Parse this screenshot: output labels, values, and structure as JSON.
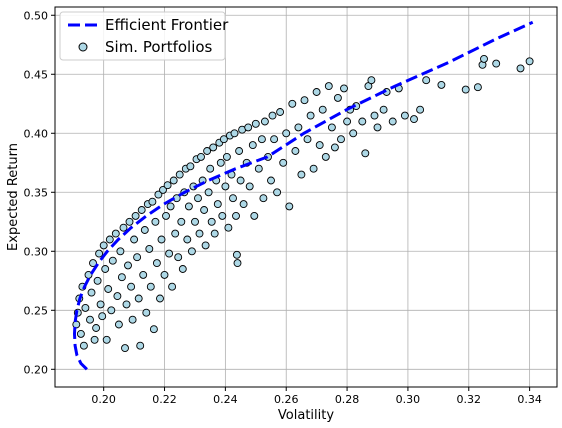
{
  "chart_data": {
    "type": "scatter",
    "xlabel": "Volatility",
    "ylabel": "Expected Return",
    "xlim": [
      0.184,
      0.349
    ],
    "ylim": [
      0.185,
      0.507
    ],
    "xticks": [
      0.2,
      0.22,
      0.24,
      0.26,
      0.28,
      0.3,
      0.32,
      0.34
    ],
    "xtick_labels": [
      "0.20",
      "0.22",
      "0.24",
      "0.26",
      "0.28",
      "0.30",
      "0.32",
      "0.34"
    ],
    "yticks": [
      0.2,
      0.25,
      0.3,
      0.35,
      0.4,
      0.45,
      0.5
    ],
    "ytick_labels": [
      "0.20",
      "0.25",
      "0.30",
      "0.35",
      "0.40",
      "0.45",
      "0.50"
    ],
    "grid": true,
    "legend_position": "upper-left",
    "series": [
      {
        "name": "Efficient Frontier",
        "kind": "line",
        "style": "dashed",
        "color": "#0000ff",
        "x": [
          0.1945,
          0.1925,
          0.1912,
          0.1906,
          0.1904,
          0.1906,
          0.1912,
          0.1922,
          0.1937,
          0.1957,
          0.1982,
          0.2012,
          0.2048,
          0.209,
          0.214,
          0.2198,
          0.2266,
          0.2344,
          0.2434,
          0.2538,
          0.2658,
          0.2798,
          0.2958,
          0.3133,
          0.329,
          0.341
        ],
        "y": [
          0.2,
          0.205,
          0.212,
          0.22,
          0.23,
          0.24,
          0.25,
          0.26,
          0.27,
          0.28,
          0.29,
          0.3,
          0.31,
          0.32,
          0.33,
          0.34,
          0.35,
          0.36,
          0.37,
          0.38,
          0.4,
          0.42,
          0.44,
          0.46,
          0.48,
          0.494
        ]
      },
      {
        "name": "Sim. Portfolios",
        "kind": "scatter",
        "marker_face": "#add8e6",
        "marker_edge": "#000000",
        "points": [
          [
            0.191,
            0.238
          ],
          [
            0.1915,
            0.248
          ],
          [
            0.192,
            0.26
          ],
          [
            0.1925,
            0.23
          ],
          [
            0.193,
            0.27
          ],
          [
            0.1935,
            0.22
          ],
          [
            0.194,
            0.252
          ],
          [
            0.195,
            0.28
          ],
          [
            0.1955,
            0.242
          ],
          [
            0.196,
            0.265
          ],
          [
            0.1965,
            0.29
          ],
          [
            0.197,
            0.225
          ],
          [
            0.1975,
            0.235
          ],
          [
            0.198,
            0.275
          ],
          [
            0.1985,
            0.298
          ],
          [
            0.199,
            0.255
          ],
          [
            0.1995,
            0.245
          ],
          [
            0.2,
            0.305
          ],
          [
            0.2005,
            0.285
          ],
          [
            0.201,
            0.225
          ],
          [
            0.2015,
            0.268
          ],
          [
            0.202,
            0.31
          ],
          [
            0.2025,
            0.25
          ],
          [
            0.203,
            0.292
          ],
          [
            0.204,
            0.315
          ],
          [
            0.2045,
            0.262
          ],
          [
            0.205,
            0.238
          ],
          [
            0.2055,
            0.3
          ],
          [
            0.206,
            0.278
          ],
          [
            0.2065,
            0.32
          ],
          [
            0.207,
            0.218
          ],
          [
            0.2075,
            0.255
          ],
          [
            0.208,
            0.288
          ],
          [
            0.2085,
            0.325
          ],
          [
            0.209,
            0.27
          ],
          [
            0.2095,
            0.242
          ],
          [
            0.21,
            0.31
          ],
          [
            0.2105,
            0.33
          ],
          [
            0.211,
            0.295
          ],
          [
            0.2115,
            0.26
          ],
          [
            0.212,
            0.22
          ],
          [
            0.2125,
            0.335
          ],
          [
            0.213,
            0.28
          ],
          [
            0.2135,
            0.318
          ],
          [
            0.214,
            0.248
          ],
          [
            0.2145,
            0.34
          ],
          [
            0.215,
            0.302
          ],
          [
            0.2155,
            0.27
          ],
          [
            0.216,
            0.342
          ],
          [
            0.2165,
            0.234
          ],
          [
            0.217,
            0.325
          ],
          [
            0.2175,
            0.29
          ],
          [
            0.218,
            0.348
          ],
          [
            0.2185,
            0.26
          ],
          [
            0.219,
            0.31
          ],
          [
            0.2195,
            0.352
          ],
          [
            0.22,
            0.28
          ],
          [
            0.2205,
            0.33
          ],
          [
            0.221,
            0.356
          ],
          [
            0.2215,
            0.298
          ],
          [
            0.222,
            0.338
          ],
          [
            0.2225,
            0.27
          ],
          [
            0.223,
            0.36
          ],
          [
            0.2235,
            0.315
          ],
          [
            0.224,
            0.345
          ],
          [
            0.2245,
            0.295
          ],
          [
            0.225,
            0.365
          ],
          [
            0.2255,
            0.325
          ],
          [
            0.226,
            0.285
          ],
          [
            0.2265,
            0.35
          ],
          [
            0.227,
            0.37
          ],
          [
            0.2275,
            0.31
          ],
          [
            0.228,
            0.338
          ],
          [
            0.2285,
            0.372
          ],
          [
            0.229,
            0.3
          ],
          [
            0.2295,
            0.355
          ],
          [
            0.23,
            0.325
          ],
          [
            0.2305,
            0.378
          ],
          [
            0.231,
            0.345
          ],
          [
            0.2315,
            0.315
          ],
          [
            0.232,
            0.38
          ],
          [
            0.2325,
            0.36
          ],
          [
            0.233,
            0.335
          ],
          [
            0.2335,
            0.305
          ],
          [
            0.234,
            0.385
          ],
          [
            0.2345,
            0.35
          ],
          [
            0.235,
            0.37
          ],
          [
            0.2355,
            0.325
          ],
          [
            0.236,
            0.388
          ],
          [
            0.2365,
            0.315
          ],
          [
            0.237,
            0.36
          ],
          [
            0.2375,
            0.34
          ],
          [
            0.238,
            0.392
          ],
          [
            0.2385,
            0.375
          ],
          [
            0.239,
            0.33
          ],
          [
            0.2395,
            0.395
          ],
          [
            0.24,
            0.355
          ],
          [
            0.2405,
            0.38
          ],
          [
            0.241,
            0.32
          ],
          [
            0.2415,
            0.398
          ],
          [
            0.242,
            0.365
          ],
          [
            0.2425,
            0.345
          ],
          [
            0.243,
            0.4
          ],
          [
            0.2435,
            0.33
          ],
          [
            0.2438,
            0.297
          ],
          [
            0.244,
            0.29
          ],
          [
            0.2445,
            0.385
          ],
          [
            0.245,
            0.36
          ],
          [
            0.2455,
            0.403
          ],
          [
            0.246,
            0.34
          ],
          [
            0.247,
            0.375
          ],
          [
            0.2475,
            0.405
          ],
          [
            0.248,
            0.355
          ],
          [
            0.249,
            0.39
          ],
          [
            0.2495,
            0.33
          ],
          [
            0.25,
            0.408
          ],
          [
            0.251,
            0.37
          ],
          [
            0.252,
            0.395
          ],
          [
            0.2525,
            0.345
          ],
          [
            0.253,
            0.41
          ],
          [
            0.254,
            0.38
          ],
          [
            0.255,
            0.36
          ],
          [
            0.2555,
            0.415
          ],
          [
            0.256,
            0.395
          ],
          [
            0.257,
            0.35
          ],
          [
            0.258,
            0.418
          ],
          [
            0.259,
            0.375
          ],
          [
            0.26,
            0.4
          ],
          [
            0.261,
            0.338
          ],
          [
            0.262,
            0.425
          ],
          [
            0.263,
            0.385
          ],
          [
            0.264,
            0.405
          ],
          [
            0.265,
            0.365
          ],
          [
            0.266,
            0.428
          ],
          [
            0.267,
            0.395
          ],
          [
            0.268,
            0.415
          ],
          [
            0.269,
            0.37
          ],
          [
            0.27,
            0.435
          ],
          [
            0.271,
            0.39
          ],
          [
            0.272,
            0.42
          ],
          [
            0.273,
            0.38
          ],
          [
            0.274,
            0.44
          ],
          [
            0.275,
            0.405
          ],
          [
            0.276,
            0.388
          ],
          [
            0.277,
            0.43
          ],
          [
            0.278,
            0.395
          ],
          [
            0.279,
            0.438
          ],
          [
            0.28,
            0.41
          ],
          [
            0.281,
            0.42
          ],
          [
            0.282,
            0.4
          ],
          [
            0.283,
            0.423
          ],
          [
            0.285,
            0.41
          ],
          [
            0.286,
            0.383
          ],
          [
            0.287,
            0.44
          ],
          [
            0.288,
            0.445
          ],
          [
            0.289,
            0.415
          ],
          [
            0.29,
            0.405
          ],
          [
            0.292,
            0.42
          ],
          [
            0.293,
            0.435
          ],
          [
            0.295,
            0.41
          ],
          [
            0.297,
            0.438
          ],
          [
            0.299,
            0.415
          ],
          [
            0.302,
            0.412
          ],
          [
            0.304,
            0.42
          ],
          [
            0.306,
            0.445
          ],
          [
            0.311,
            0.441
          ],
          [
            0.319,
            0.437
          ],
          [
            0.323,
            0.439
          ],
          [
            0.3245,
            0.458
          ],
          [
            0.325,
            0.463
          ],
          [
            0.329,
            0.459
          ],
          [
            0.337,
            0.455
          ],
          [
            0.34,
            0.461
          ]
        ]
      }
    ]
  }
}
